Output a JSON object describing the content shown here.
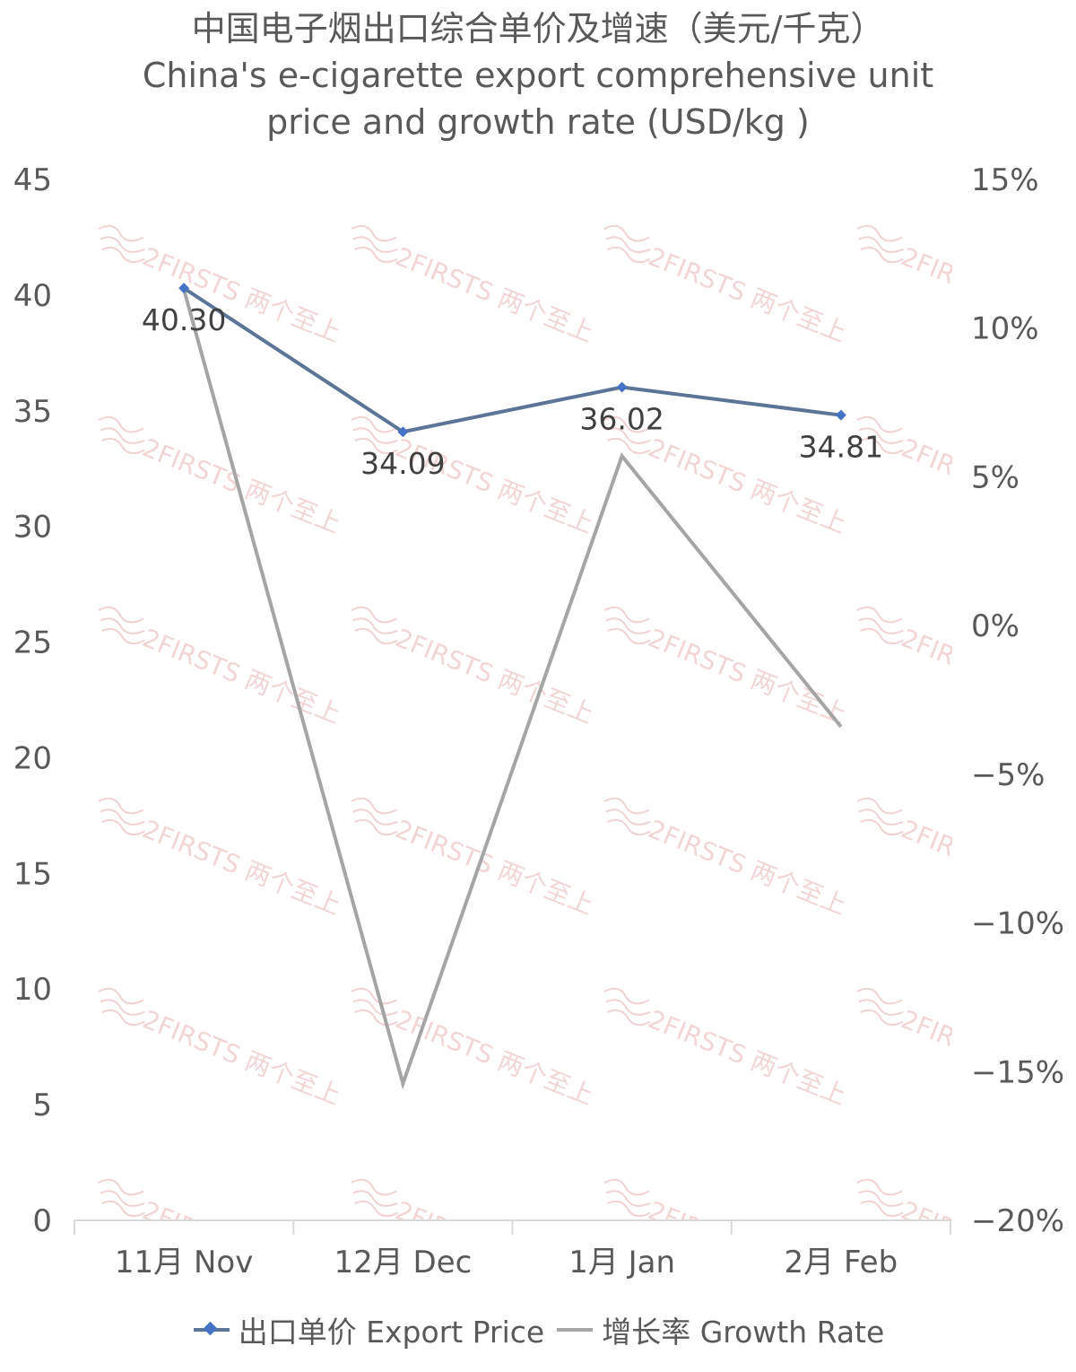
{
  "colors": {
    "price": "#4472C4",
    "price_line": "#5B7497",
    "growth": "#A5A5A5",
    "axis": "#D9D9D9",
    "watermark": "#E8B4B4"
  },
  "watermark_text": "2FIRSTS 两个至上",
  "chart_data": {
    "type": "line",
    "title": "中国电子烟出口综合单价及增速（美元/千克）",
    "subtitle": [
      "China's e-cigarette export comprehensive unit",
      "price and growth rate (USD/kg )"
    ],
    "categories": [
      "11月 Nov",
      "12月 Dec",
      "1月 Jan",
      "2月 Feb"
    ],
    "left_axis": {
      "ylim": [
        0,
        45
      ],
      "ticks": [
        "45",
        "40",
        "35",
        "30",
        "25",
        "20",
        "15",
        "10",
        "5",
        "0"
      ]
    },
    "right_axis": {
      "ylim": [
        -20,
        15
      ],
      "ticks": [
        "15%",
        "10%",
        "5%",
        "0%",
        "−5%",
        "−10%",
        "−15%",
        "−20%"
      ]
    },
    "series": [
      {
        "name": "出口单价 Export Price",
        "axis": "left",
        "marker": "diamond",
        "values": [
          40.3,
          34.09,
          36.02,
          34.81
        ],
        "data_labels": [
          "40.30",
          "34.09",
          "36.02",
          "34.81"
        ]
      },
      {
        "name": "增长率 Growth Rate",
        "axis": "right",
        "values": [
          11.3,
          -15.4,
          5.7,
          -3.4
        ]
      }
    ],
    "grid": false,
    "legend": "bottom"
  }
}
